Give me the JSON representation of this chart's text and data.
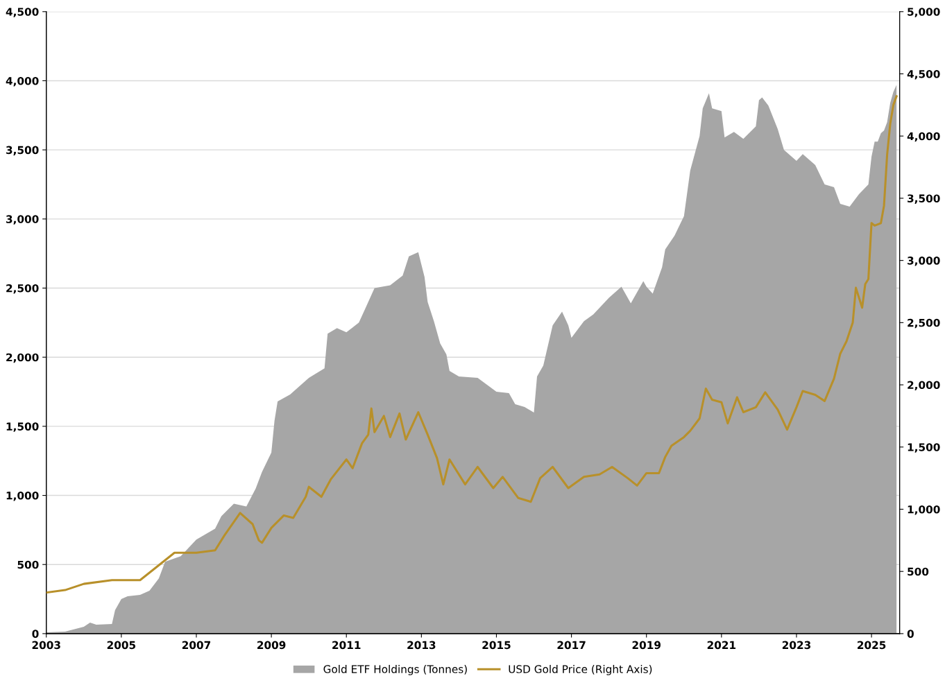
{
  "chart_data": {
    "type": "area",
    "xlim": [
      "2003-01",
      "2025-10"
    ],
    "xticks": [
      "2003",
      "2005",
      "2007",
      "2009",
      "2011",
      "2013",
      "2015",
      "2017",
      "2019",
      "2021",
      "2023",
      "2025"
    ],
    "ylim": [
      0,
      4500
    ],
    "yticks": [
      0,
      500,
      {
        "value": 1000,
        "label": "1,000"
      },
      {
        "value": 1500,
        "label": "1,500"
      },
      {
        "value": 2000,
        "label": "2,000"
      },
      {
        "value": 2500,
        "label": "2,500"
      },
      {
        "value": 3000,
        "label": "3,000"
      },
      {
        "value": 3500,
        "label": "3,500"
      },
      {
        "value": 4000,
        "label": "4,000"
      },
      {
        "value": 4500,
        "label": "4,500"
      }
    ],
    "y2lim": [
      0,
      5000
    ],
    "y2ticks": [
      0,
      500,
      {
        "value": 1000,
        "label": "1,000"
      },
      {
        "value": 1500,
        "label": "1,500"
      },
      {
        "value": 2000,
        "label": "2,000"
      },
      {
        "value": 2500,
        "label": "2,500"
      },
      {
        "value": 3000,
        "label": "3,000"
      },
      {
        "value": 3500,
        "label": "3,500"
      },
      {
        "value": 4000,
        "label": "4,000"
      },
      {
        "value": 4500,
        "label": "4,500"
      },
      {
        "value": 5000,
        "label": "5,000"
      }
    ],
    "grid": "y",
    "legend": "bottom",
    "series": [
      {
        "name": "Gold ETF Holdings (Tonnes)",
        "color": "#a6a6a6",
        "x": [
          "2003-01",
          "2003-07",
          "2004-01",
          "2004-03",
          "2004-05",
          "2004-10",
          "2004-11",
          "2005-01",
          "2005-03",
          "2005-07",
          "2005-10",
          "2006-01",
          "2006-03",
          "2006-08",
          "2007-01",
          "2007-07",
          "2007-09",
          "2008-01",
          "2008-05",
          "2008-08",
          "2008-10",
          "2009-01",
          "2009-02",
          "2009-03",
          "2009-07",
          "2009-10",
          "2010-01",
          "2010-06",
          "2010-07",
          "2010-10",
          "2011-01",
          "2011-05",
          "2011-07",
          "2011-10",
          "2012-03",
          "2012-07",
          "2012-09",
          "2012-12",
          "2013-02",
          "2013-03",
          "2013-05",
          "2013-07",
          "2013-09",
          "2013-10",
          "2014-01",
          "2014-07",
          "2014-10",
          "2015-01",
          "2015-05",
          "2015-07",
          "2015-10",
          "2016-01",
          "2016-02",
          "2016-04",
          "2016-07",
          "2016-10",
          "2016-12",
          "2017-01",
          "2017-05",
          "2017-08",
          "2018-01",
          "2018-05",
          "2018-08",
          "2018-12",
          "2019-01",
          "2019-03",
          "2019-06",
          "2019-07",
          "2019-10",
          "2020-01",
          "2020-03",
          "2020-06",
          "2020-07",
          "2020-09",
          "2020-10",
          "2021-01",
          "2021-02",
          "2021-05",
          "2021-08",
          "2021-12",
          "2022-01",
          "2022-02",
          "2022-04",
          "2022-07",
          "2022-09",
          "2023-01",
          "2023-03",
          "2023-07",
          "2023-10",
          "2024-01",
          "2024-03",
          "2024-06",
          "2024-09",
          "2024-12",
          "2025-01",
          "2025-02",
          "2025-03",
          "2025-04",
          "2025-05",
          "2025-06",
          "2025-07",
          "2025-08",
          "2025-09"
        ],
        "values": [
          10,
          15,
          50,
          80,
          65,
          70,
          170,
          250,
          270,
          280,
          310,
          400,
          520,
          560,
          680,
          760,
          850,
          940,
          920,
          1050,
          1170,
          1310,
          1540,
          1680,
          1730,
          1790,
          1850,
          1920,
          2170,
          2210,
          2180,
          2250,
          2350,
          2500,
          2520,
          2590,
          2730,
          2760,
          2580,
          2400,
          2260,
          2100,
          2020,
          1900,
          1860,
          1850,
          1800,
          1750,
          1740,
          1660,
          1640,
          1600,
          1860,
          1940,
          2230,
          2330,
          2230,
          2140,
          2260,
          2310,
          2430,
          2510,
          2390,
          2550,
          2510,
          2460,
          2650,
          2780,
          2880,
          3020,
          3350,
          3600,
          3800,
          3910,
          3800,
          3780,
          3590,
          3630,
          3580,
          3670,
          3860,
          3880,
          3820,
          3650,
          3500,
          3420,
          3470,
          3390,
          3250,
          3230,
          3110,
          3090,
          3180,
          3250,
          3450,
          3560,
          3560,
          3620,
          3640,
          3700,
          3840,
          3920,
          3970
        ]
      },
      {
        "name": "USD Gold Price (Right Axis)",
        "type": "line",
        "axis": "y2",
        "color": "#b8902a",
        "x": [
          "2003-01",
          "2003-07",
          "2004-01",
          "2004-10",
          "2005-01",
          "2005-07",
          "2006-01",
          "2006-06",
          "2007-01",
          "2007-07",
          "2007-10",
          "2008-03",
          "2008-07",
          "2008-09",
          "2008-10",
          "2009-01",
          "2009-05",
          "2009-08",
          "2009-12",
          "2010-01",
          "2010-05",
          "2010-08",
          "2011-01",
          "2011-03",
          "2011-06",
          "2011-08",
          "2011-09",
          "2011-10",
          "2012-01",
          "2012-03",
          "2012-06",
          "2012-08",
          "2012-12",
          "2013-03",
          "2013-06",
          "2013-08",
          "2013-10",
          "2014-03",
          "2014-07",
          "2014-12",
          "2015-03",
          "2015-08",
          "2015-12",
          "2016-03",
          "2016-07",
          "2016-12",
          "2017-05",
          "2017-10",
          "2018-02",
          "2018-07",
          "2018-10",
          "2019-01",
          "2019-05",
          "2019-07",
          "2019-09",
          "2020-01",
          "2020-03",
          "2020-06",
          "2020-08",
          "2020-10",
          "2021-01",
          "2021-03",
          "2021-06",
          "2021-08",
          "2021-12",
          "2022-03",
          "2022-07",
          "2022-10",
          "2023-01",
          "2023-03",
          "2023-07",
          "2023-10",
          "2024-01",
          "2024-03",
          "2024-05",
          "2024-07",
          "2024-08",
          "2024-10",
          "2024-11",
          "2024-12",
          "2025-01",
          "2025-02",
          "2025-04",
          "2025-05",
          "2025-06",
          "2025-07",
          "2025-08",
          "2025-09"
        ],
        "values": [
          330,
          350,
          400,
          430,
          430,
          430,
          550,
          650,
          650,
          670,
          790,
          970,
          880,
          750,
          730,
          850,
          950,
          930,
          1100,
          1180,
          1100,
          1240,
          1400,
          1330,
          1530,
          1600,
          1810,
          1620,
          1750,
          1580,
          1770,
          1560,
          1780,
          1600,
          1410,
          1200,
          1400,
          1200,
          1340,
          1170,
          1260,
          1090,
          1060,
          1250,
          1340,
          1170,
          1260,
          1280,
          1340,
          1250,
          1190,
          1290,
          1290,
          1420,
          1510,
          1580,
          1630,
          1730,
          1970,
          1880,
          1860,
          1690,
          1900,
          1780,
          1820,
          1940,
          1800,
          1640,
          1820,
          1950,
          1920,
          1870,
          2050,
          2250,
          2350,
          2500,
          2780,
          2620,
          2810,
          2850,
          3300,
          3280,
          3300,
          3440,
          3850,
          4100,
          4250,
          4320
        ]
      }
    ]
  }
}
